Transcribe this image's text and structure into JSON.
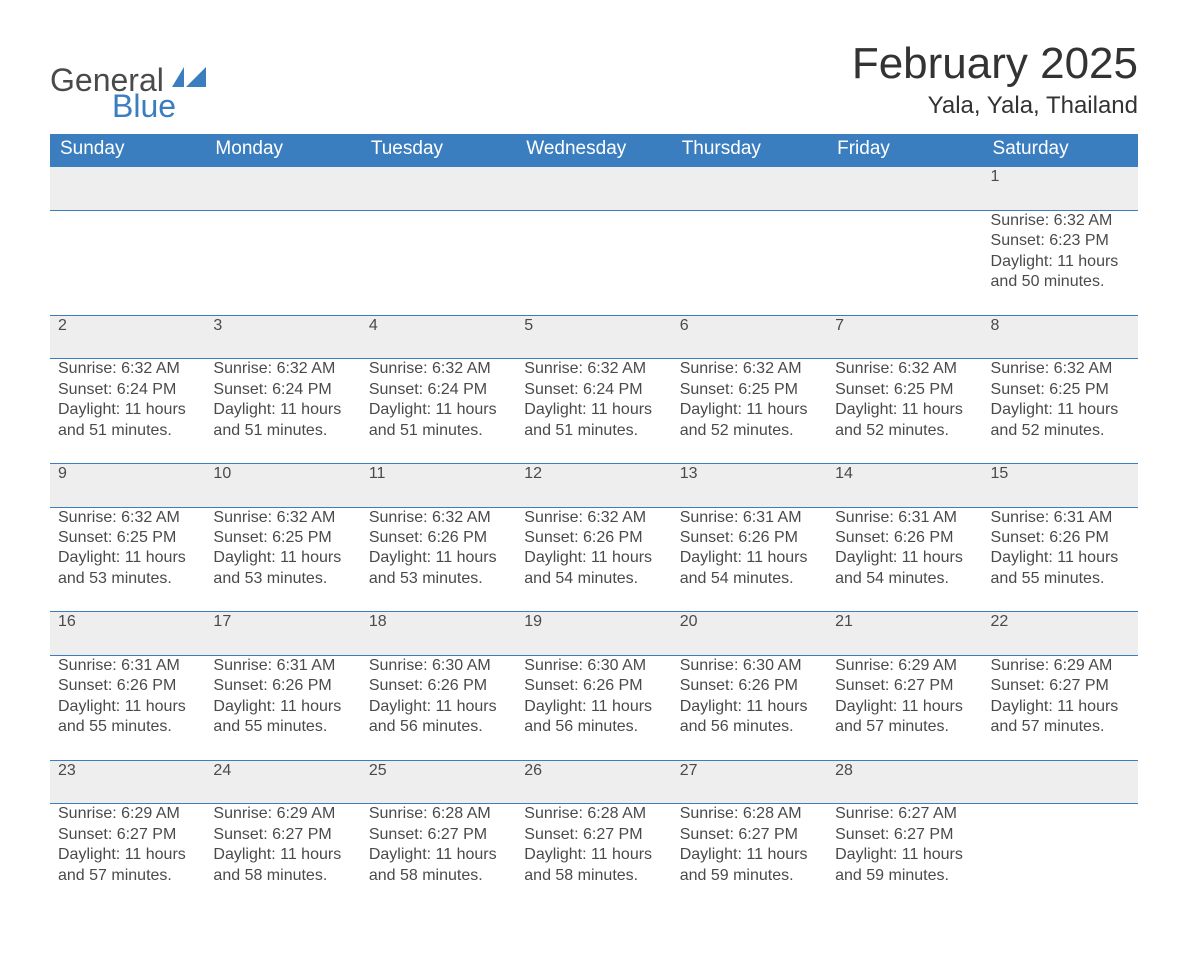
{
  "brand": {
    "word1": "General",
    "word2": "Blue",
    "flag_color": "#3b7ebf"
  },
  "title": {
    "month_year": "February 2025",
    "location": "Yala, Yala, Thailand"
  },
  "colors": {
    "header_bg": "#3b7ebf",
    "header_text": "#ffffff",
    "daynum_bg": "#eeeeee",
    "divider": "#3b7ebf",
    "body_text": "#4a4a4a",
    "background": "#ffffff"
  },
  "typography": {
    "title_fontsize_pt": 33,
    "location_fontsize_pt": 18,
    "header_fontsize_pt": 14,
    "cell_fontsize_pt": 12
  },
  "weekdays": [
    "Sunday",
    "Monday",
    "Tuesday",
    "Wednesday",
    "Thursday",
    "Friday",
    "Saturday"
  ],
  "layout": {
    "columns": 7,
    "rows": 5,
    "start_weekday_index": 6
  },
  "weeks": [
    [
      null,
      null,
      null,
      null,
      null,
      null,
      {
        "day": "1",
        "sunrise": "Sunrise: 6:32 AM",
        "sunset": "Sunset: 6:23 PM",
        "daylight": "Daylight: 11 hours and 50 minutes."
      }
    ],
    [
      {
        "day": "2",
        "sunrise": "Sunrise: 6:32 AM",
        "sunset": "Sunset: 6:24 PM",
        "daylight": "Daylight: 11 hours and 51 minutes."
      },
      {
        "day": "3",
        "sunrise": "Sunrise: 6:32 AM",
        "sunset": "Sunset: 6:24 PM",
        "daylight": "Daylight: 11 hours and 51 minutes."
      },
      {
        "day": "4",
        "sunrise": "Sunrise: 6:32 AM",
        "sunset": "Sunset: 6:24 PM",
        "daylight": "Daylight: 11 hours and 51 minutes."
      },
      {
        "day": "5",
        "sunrise": "Sunrise: 6:32 AM",
        "sunset": "Sunset: 6:24 PM",
        "daylight": "Daylight: 11 hours and 51 minutes."
      },
      {
        "day": "6",
        "sunrise": "Sunrise: 6:32 AM",
        "sunset": "Sunset: 6:25 PM",
        "daylight": "Daylight: 11 hours and 52 minutes."
      },
      {
        "day": "7",
        "sunrise": "Sunrise: 6:32 AM",
        "sunset": "Sunset: 6:25 PM",
        "daylight": "Daylight: 11 hours and 52 minutes."
      },
      {
        "day": "8",
        "sunrise": "Sunrise: 6:32 AM",
        "sunset": "Sunset: 6:25 PM",
        "daylight": "Daylight: 11 hours and 52 minutes."
      }
    ],
    [
      {
        "day": "9",
        "sunrise": "Sunrise: 6:32 AM",
        "sunset": "Sunset: 6:25 PM",
        "daylight": "Daylight: 11 hours and 53 minutes."
      },
      {
        "day": "10",
        "sunrise": "Sunrise: 6:32 AM",
        "sunset": "Sunset: 6:25 PM",
        "daylight": "Daylight: 11 hours and 53 minutes."
      },
      {
        "day": "11",
        "sunrise": "Sunrise: 6:32 AM",
        "sunset": "Sunset: 6:26 PM",
        "daylight": "Daylight: 11 hours and 53 minutes."
      },
      {
        "day": "12",
        "sunrise": "Sunrise: 6:32 AM",
        "sunset": "Sunset: 6:26 PM",
        "daylight": "Daylight: 11 hours and 54 minutes."
      },
      {
        "day": "13",
        "sunrise": "Sunrise: 6:31 AM",
        "sunset": "Sunset: 6:26 PM",
        "daylight": "Daylight: 11 hours and 54 minutes."
      },
      {
        "day": "14",
        "sunrise": "Sunrise: 6:31 AM",
        "sunset": "Sunset: 6:26 PM",
        "daylight": "Daylight: 11 hours and 54 minutes."
      },
      {
        "day": "15",
        "sunrise": "Sunrise: 6:31 AM",
        "sunset": "Sunset: 6:26 PM",
        "daylight": "Daylight: 11 hours and 55 minutes."
      }
    ],
    [
      {
        "day": "16",
        "sunrise": "Sunrise: 6:31 AM",
        "sunset": "Sunset: 6:26 PM",
        "daylight": "Daylight: 11 hours and 55 minutes."
      },
      {
        "day": "17",
        "sunrise": "Sunrise: 6:31 AM",
        "sunset": "Sunset: 6:26 PM",
        "daylight": "Daylight: 11 hours and 55 minutes."
      },
      {
        "day": "18",
        "sunrise": "Sunrise: 6:30 AM",
        "sunset": "Sunset: 6:26 PM",
        "daylight": "Daylight: 11 hours and 56 minutes."
      },
      {
        "day": "19",
        "sunrise": "Sunrise: 6:30 AM",
        "sunset": "Sunset: 6:26 PM",
        "daylight": "Daylight: 11 hours and 56 minutes."
      },
      {
        "day": "20",
        "sunrise": "Sunrise: 6:30 AM",
        "sunset": "Sunset: 6:26 PM",
        "daylight": "Daylight: 11 hours and 56 minutes."
      },
      {
        "day": "21",
        "sunrise": "Sunrise: 6:29 AM",
        "sunset": "Sunset: 6:27 PM",
        "daylight": "Daylight: 11 hours and 57 minutes."
      },
      {
        "day": "22",
        "sunrise": "Sunrise: 6:29 AM",
        "sunset": "Sunset: 6:27 PM",
        "daylight": "Daylight: 11 hours and 57 minutes."
      }
    ],
    [
      {
        "day": "23",
        "sunrise": "Sunrise: 6:29 AM",
        "sunset": "Sunset: 6:27 PM",
        "daylight": "Daylight: 11 hours and 57 minutes."
      },
      {
        "day": "24",
        "sunrise": "Sunrise: 6:29 AM",
        "sunset": "Sunset: 6:27 PM",
        "daylight": "Daylight: 11 hours and 58 minutes."
      },
      {
        "day": "25",
        "sunrise": "Sunrise: 6:28 AM",
        "sunset": "Sunset: 6:27 PM",
        "daylight": "Daylight: 11 hours and 58 minutes."
      },
      {
        "day": "26",
        "sunrise": "Sunrise: 6:28 AM",
        "sunset": "Sunset: 6:27 PM",
        "daylight": "Daylight: 11 hours and 58 minutes."
      },
      {
        "day": "27",
        "sunrise": "Sunrise: 6:28 AM",
        "sunset": "Sunset: 6:27 PM",
        "daylight": "Daylight: 11 hours and 59 minutes."
      },
      {
        "day": "28",
        "sunrise": "Sunrise: 6:27 AM",
        "sunset": "Sunset: 6:27 PM",
        "daylight": "Daylight: 11 hours and 59 minutes."
      },
      null
    ]
  ]
}
